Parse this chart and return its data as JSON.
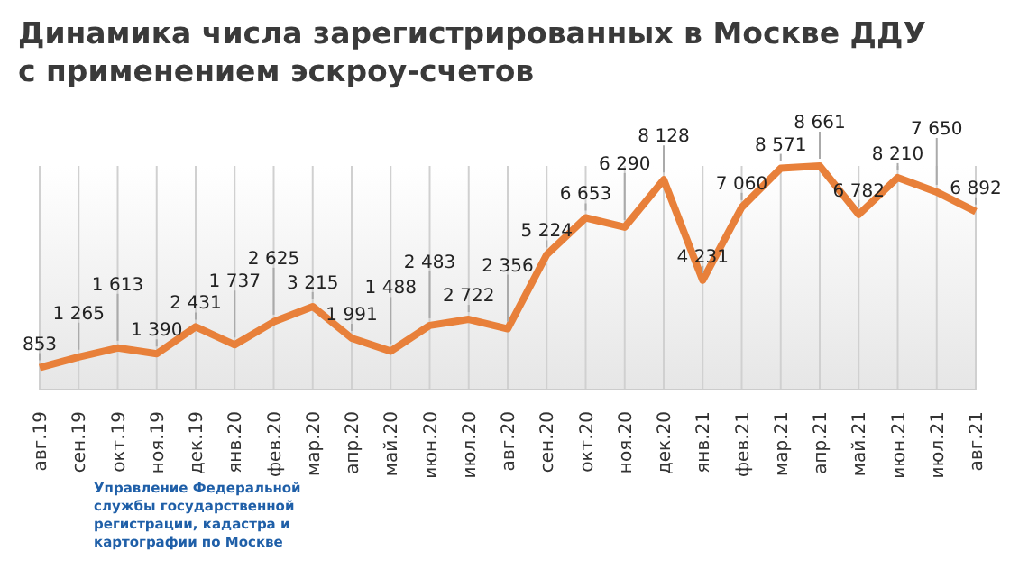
{
  "chart_data": {
    "type": "line",
    "title": "Динамика числа зарегистрированных в Москве ДДУ\nс применением эскроу-счетов",
    "categories": [
      "авг.19",
      "сен.19",
      "окт.19",
      "ноя.19",
      "дек.19",
      "янв.20",
      "фев.20",
      "мар.20",
      "апр.20",
      "май.20",
      "июн.20",
      "июл.20",
      "авг.20",
      "сен.20",
      "окт.20",
      "ноя.20",
      "дек.20",
      "янв.21",
      "фев.21",
      "мар.21",
      "апр.21",
      "май.21",
      "июн.21",
      "июл.21",
      "авг.21"
    ],
    "series": [
      {
        "color": "#e8803a",
        "values": [
          853,
          1265,
          1613,
          1390,
          2431,
          1737,
          2625,
          3215,
          1991,
          1488,
          2483,
          2722,
          2356,
          5224,
          6653,
          6290,
          8128,
          4231,
          7060,
          8571,
          8661,
          6782,
          8210,
          7650,
          6892
        ],
        "value_labels": [
          "853",
          "1 265",
          "1 613",
          "1 390",
          "2 431",
          "1 737",
          "2 625",
          "3 215",
          "1 991",
          "1 488",
          "2 483",
          "2 722",
          "2 356",
          "5 224",
          "6 653",
          "6 290",
          "8 128",
          "4 231",
          "7 060",
          "8 571",
          "8 661",
          "6 782",
          "8 210",
          "7 650",
          "6 892"
        ]
      }
    ],
    "grid": "x",
    "legend": false,
    "marker": "none",
    "line_style": "solid",
    "annotations": [
      "Управление Федеральной\nслужбы государственной\nрегистрации, кадастра и\nкартографии по Москве"
    ]
  }
}
